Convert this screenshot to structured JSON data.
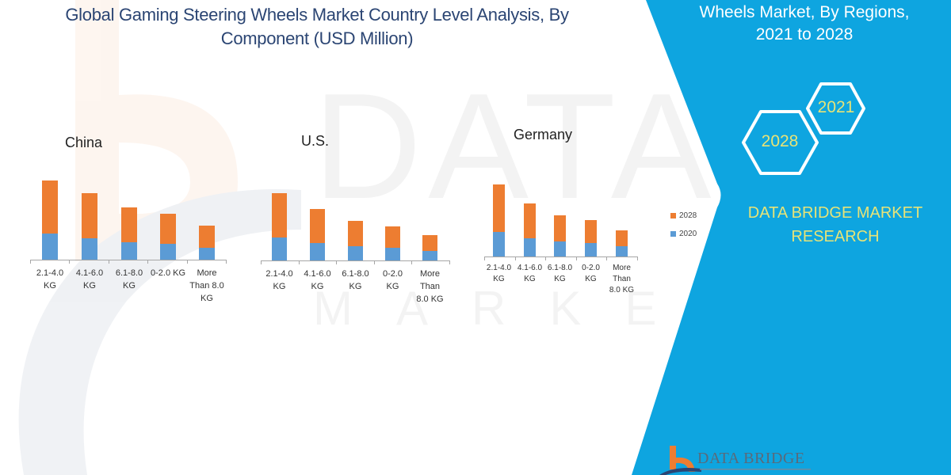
{
  "header": {
    "title_line1": "Global Gaming Steering Wheels Market Country Level Analysis, By",
    "title_line2": "Component (USD Million)"
  },
  "panel": {
    "title_line1": "Wheels Market, By Regions,",
    "title_line2": "2021 to 2028",
    "hex_large": "2028",
    "hex_small": "2021",
    "brand_line1": "DATA BRIDGE MARKET",
    "brand_line2": "RESEARCH",
    "logo_text": "DATA BRIDGE",
    "color": "#0ea5e0"
  },
  "legend": [
    {
      "label": "2028",
      "color": "#ed7d31"
    },
    {
      "label": "2020",
      "color": "#5b9bd5"
    }
  ],
  "chart_data": [
    {
      "type": "bar",
      "stacked": true,
      "title": "China",
      "categories": [
        "2.1-4.0 KG",
        "4.1-6.0 KG",
        "6.1-8.0 KG",
        "0-2.0 KG",
        "More Than 8.0 KG"
      ],
      "category_labels": [
        "2.1-4.0\nKG",
        "4.1-6.0\nKG",
        "6.1-8.0\nKG",
        "0-2.0 KG",
        "More\nThan 8.0\nKG"
      ],
      "series": [
        {
          "name": "2020",
          "values": [
            33,
            27,
            22,
            20,
            15
          ]
        },
        {
          "name": "2028",
          "values": [
            67,
            57,
            44,
            38,
            28
          ]
        }
      ],
      "xlabel": "",
      "ylabel": "",
      "units": "relative (no y-axis shown)",
      "grid": false,
      "legend_position": "right"
    },
    {
      "type": "bar",
      "stacked": true,
      "title": "U.S.",
      "categories": [
        "2.1-4.0 KG",
        "4.1-6.0 KG",
        "6.1-8.0 KG",
        "0-2.0 KG",
        "More Than 8.0 KG"
      ],
      "category_labels": [
        "2.1-4.0\nKG",
        "4.1-6.0\nKG",
        "6.1-8.0\nKG",
        "0-2.0\nKG",
        "More\nThan\n8.0 KG"
      ],
      "series": [
        {
          "name": "2020",
          "values": [
            29,
            22,
            18,
            16,
            12
          ]
        },
        {
          "name": "2028",
          "values": [
            56,
            43,
            32,
            27,
            20
          ]
        }
      ],
      "xlabel": "",
      "ylabel": "",
      "units": "relative (no y-axis shown)",
      "grid": false
    },
    {
      "type": "bar",
      "stacked": true,
      "title": "Germany",
      "categories": [
        "2.1-4.0 KG",
        "4.1-6.0 KG",
        "6.1-8.0 KG",
        "0-2.0 KG",
        "More Than 8.0 KG"
      ],
      "category_labels": [
        "2.1-4.0\nKG",
        "4.1-6.0\nKG",
        "6.1-8.0\nKG",
        "0-2.0\nKG",
        "More\nThan\n8.0 KG"
      ],
      "series": [
        {
          "name": "2020",
          "values": [
            31,
            23,
            19,
            17,
            13
          ]
        },
        {
          "name": "2028",
          "values": [
            60,
            44,
            33,
            29,
            20
          ]
        }
      ],
      "xlabel": "",
      "ylabel": "",
      "units": "relative (no y-axis shown)",
      "grid": false
    }
  ]
}
